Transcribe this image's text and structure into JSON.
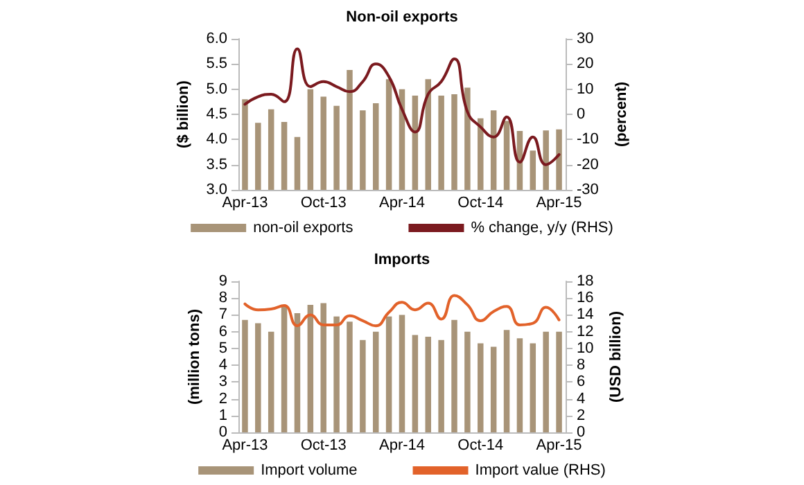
{
  "chart_data": [
    {
      "type": "bar",
      "title": "Non-oil exports",
      "ylabel": "($ billion)",
      "y2label": "(percent)",
      "categories": [
        "Apr-13",
        null,
        null,
        null,
        null,
        null,
        "Oct-13",
        null,
        null,
        null,
        null,
        null,
        "Apr-14",
        null,
        null,
        null,
        null,
        null,
        "Oct-14",
        null,
        null,
        null,
        null,
        null,
        "Apr-15"
      ],
      "series": [
        {
          "name": "non-oil exports",
          "color": "#a89478",
          "values": [
            4.8,
            4.33,
            4.6,
            4.35,
            4.05,
            5.0,
            4.85,
            4.67,
            5.38,
            4.58,
            4.72,
            5.2,
            5.0,
            4.87,
            5.2,
            4.87,
            4.9,
            5.03,
            4.42,
            4.58,
            4.37,
            4.17,
            3.78,
            4.18,
            4.2
          ]
        },
        {
          "name": "% change, y/y (RHS)",
          "type": "line",
          "axis": "y2",
          "color": "#7b1a1f",
          "values": [
            4,
            7,
            8,
            5,
            26,
            11,
            13,
            11,
            9,
            13,
            20,
            15,
            2,
            -7,
            8,
            13,
            22,
            1,
            -5,
            -9,
            -1,
            -19,
            -9,
            -20,
            -16
          ]
        }
      ],
      "ylim": [
        3.0,
        6.0
      ],
      "yticks": [
        {
          "value": 3,
          "label": "3.0"
        },
        {
          "value": 3.5,
          "label": "3.5"
        },
        {
          "value": 4,
          "label": "4.0"
        },
        {
          "value": 4.5,
          "label": "4.5"
        },
        {
          "value": 5,
          "label": "5.0"
        },
        {
          "value": 5.5,
          "label": "5.5"
        },
        {
          "value": 6,
          "label": "6.0"
        }
      ],
      "y2lim": [
        -30,
        30
      ],
      "y2ticks": [
        -30,
        -20,
        -10,
        0,
        10,
        20,
        30
      ],
      "grid": false,
      "legend": "bottom",
      "marker": "none",
      "line_style": "solid"
    },
    {
      "type": "bar",
      "title": "Imports",
      "ylabel": "(million tons)",
      "y2label": "(USD billion)",
      "categories": [
        "Apr-13",
        null,
        null,
        null,
        null,
        null,
        "Oct-13",
        null,
        null,
        null,
        null,
        null,
        "Apr-14",
        null,
        null,
        null,
        null,
        null,
        "Oct-14",
        null,
        null,
        null,
        null,
        null,
        "Apr-15"
      ],
      "series": [
        {
          "name": "Import volume",
          "color": "#a89478",
          "values": [
            6.7,
            6.5,
            6.0,
            7.5,
            7.1,
            7.6,
            7.7,
            6.9,
            6.6,
            5.5,
            6.0,
            6.9,
            7.0,
            5.8,
            5.7,
            5.5,
            6.7,
            6.0,
            5.3,
            5.1,
            6.1,
            5.6,
            5.3,
            6.0,
            6.0
          ]
        },
        {
          "name": "Import value (RHS)",
          "type": "line",
          "axis": "y2",
          "color": "#e2622a",
          "values": [
            15.3,
            14.6,
            14.7,
            15.1,
            12.7,
            14.0,
            12.8,
            12.8,
            13.9,
            13.3,
            12.7,
            14.3,
            15.5,
            14.6,
            15.4,
            13.5,
            16.3,
            15.2,
            13.3,
            14.4,
            15.0,
            12.8,
            13.0,
            14.9,
            13.4
          ]
        }
      ],
      "ylim": [
        0,
        9
      ],
      "yticks": [
        0,
        1,
        2,
        3,
        4,
        5,
        6,
        7,
        8,
        9
      ],
      "y2lim": [
        0,
        18
      ],
      "y2ticks": [
        0,
        2,
        4,
        6,
        8,
        10,
        12,
        14,
        16,
        18
      ],
      "grid": false,
      "legend": "bottom",
      "marker": "none",
      "line_style": "solid"
    }
  ]
}
